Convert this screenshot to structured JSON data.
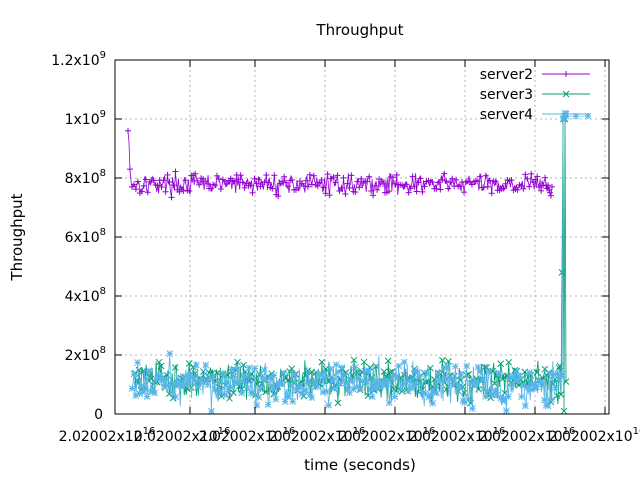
{
  "chart_data": {
    "type": "line",
    "title": "Throughput",
    "xlabel": "time (seconds)",
    "ylabel": "Throughput",
    "ylim": [
      0,
      1200000000
    ],
    "grid": true,
    "legend_placement": "top-right",
    "y_ticks": [
      {
        "value": 0,
        "label": "0",
        "exp": ""
      },
      {
        "value": 200000000,
        "label": "2x10",
        "exp": "8"
      },
      {
        "value": 400000000,
        "label": "4x10",
        "exp": "8"
      },
      {
        "value": 600000000,
        "label": "6x10",
        "exp": "8"
      },
      {
        "value": 800000000,
        "label": "8x10",
        "exp": "8"
      },
      {
        "value": 1000000000,
        "label": "1x10",
        "exp": "9"
      },
      {
        "value": 1200000000,
        "label": "1.2x10",
        "exp": "9"
      }
    ],
    "x_tick_count": 7,
    "x_tick_label": "2.02002x10",
    "x_tick_exp": "16",
    "series": [
      {
        "name": "server2",
        "color": "#9400d3",
        "marker": "plus",
        "samples": 430,
        "start_values": [
          960000000,
          920000000,
          830000000,
          790000000,
          770000000
        ],
        "typical_range": [
          730000000,
          830000000
        ],
        "end_values": [
          760000000,
          750000000,
          740000000,
          770000000
        ]
      },
      {
        "name": "server3",
        "color": "#009e73",
        "marker": "cross",
        "samples": 430,
        "typical_range": [
          20000000,
          210000000
        ],
        "end_values": [
          480000000,
          1000000000,
          10000000,
          1000000000,
          110000000
        ]
      },
      {
        "name": "server4",
        "color": "#56b4e9",
        "marker": "star",
        "samples": 460,
        "typical_range": [
          0,
          210000000
        ],
        "end_values": [
          1000000000,
          1010000000,
          1020000000,
          1010000000
        ]
      }
    ]
  }
}
